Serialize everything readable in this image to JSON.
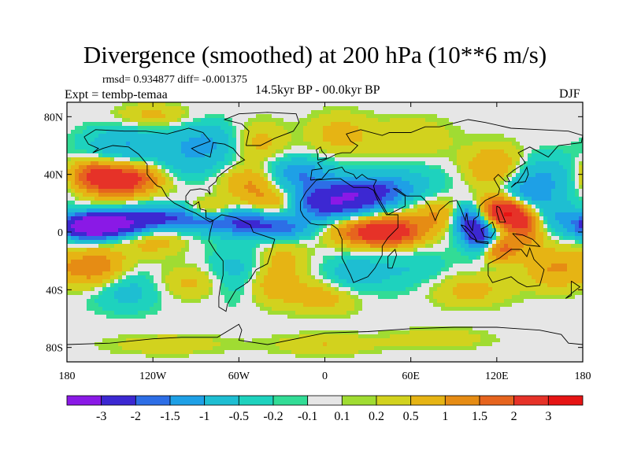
{
  "title": "Divergence (smoothed) at 200 hPa (10**6 m/s)",
  "stats": "rmsd= 0.934877 diff= -0.001375",
  "period": "14.5kyr BP - 00.0kyr BP",
  "experiment": "Expt = tembp-temaa",
  "season": "DJF",
  "chart_data": {
    "type": "heatmap",
    "title": "Divergence (smoothed) at 200 hPa (10**6 m/s)",
    "subtitle": "14.5kyr BP - 00.0kyr BP",
    "units": "10**6 m/s",
    "xlim": [
      -180,
      180
    ],
    "ylim": [
      -90,
      90
    ],
    "x_ticks": [
      {
        "value": -180,
        "label": "180"
      },
      {
        "value": -120,
        "label": "120W"
      },
      {
        "value": -60,
        "label": "60W"
      },
      {
        "value": 0,
        "label": "0"
      },
      {
        "value": 60,
        "label": "60E"
      },
      {
        "value": 120,
        "label": "120E"
      },
      {
        "value": 180,
        "label": "180"
      }
    ],
    "y_ticks": [
      {
        "value": 80,
        "label": "80N"
      },
      {
        "value": 40,
        "label": "40N"
      },
      {
        "value": 0,
        "label": "0"
      },
      {
        "value": -40,
        "label": "40S"
      },
      {
        "value": -80,
        "label": "80S"
      }
    ],
    "colorbar": {
      "levels": [
        "-3",
        "-2",
        "-1.5",
        "-1",
        "-0.5",
        "-0.2",
        "-0.1",
        "0.1",
        "0.2",
        "0.5",
        "1",
        "1.5",
        "2",
        "3"
      ],
      "colors": [
        "#8a19e6",
        "#3c28d2",
        "#2d6ee6",
        "#1ea0e6",
        "#1ebed2",
        "#1ed2be",
        "#32dc96",
        "#e6e6e6",
        "#a0dc32",
        "#d2d21e",
        "#e6b414",
        "#e68c14",
        "#e6641e",
        "#e63228",
        "#e61414"
      ]
    },
    "features": [
      {
        "lon": -150,
        "lat": 5,
        "value": -3.0,
        "wx": 20,
        "wy": 6
      },
      {
        "lon": -165,
        "lat": 3,
        "value": -2.5,
        "wx": 12,
        "wy": 6
      },
      {
        "lon": -110,
        "lat": 10,
        "value": -2.0,
        "wx": 25,
        "wy": 6
      },
      {
        "lon": -60,
        "lat": 8,
        "value": -1.8,
        "wx": 20,
        "wy": 7
      },
      {
        "lon": -30,
        "lat": 2,
        "value": -1.5,
        "wx": 18,
        "wy": 6
      },
      {
        "lon": 0,
        "lat": 20,
        "value": -2.5,
        "wx": 22,
        "wy": 8
      },
      {
        "lon": 30,
        "lat": 28,
        "value": -2.0,
        "wx": 20,
        "wy": 8
      },
      {
        "lon": -20,
        "lat": 40,
        "value": -1.5,
        "wx": 18,
        "wy": 8
      },
      {
        "lon": 100,
        "lat": 8,
        "value": -2.5,
        "wx": 8,
        "wy": 8
      },
      {
        "lon": 110,
        "lat": -5,
        "value": -2.5,
        "wx": 8,
        "wy": 8
      },
      {
        "lon": 140,
        "lat": 25,
        "value": -1.5,
        "wx": 14,
        "wy": 8
      },
      {
        "lon": 150,
        "lat": 40,
        "value": -1.0,
        "wx": 18,
        "wy": 10
      },
      {
        "lon": 160,
        "lat": 10,
        "value": -1.0,
        "wx": 14,
        "wy": 8
      },
      {
        "lon": -80,
        "lat": 62,
        "value": -1.2,
        "wx": 22,
        "wy": 10
      },
      {
        "lon": -140,
        "lat": 60,
        "value": -1.0,
        "wx": 20,
        "wy": 10
      },
      {
        "lon": -60,
        "lat": -30,
        "value": -1.0,
        "wx": 16,
        "wy": 12
      },
      {
        "lon": -140,
        "lat": -40,
        "value": -0.8,
        "wx": 18,
        "wy": 10
      },
      {
        "lon": 20,
        "lat": -30,
        "value": -0.8,
        "wx": 15,
        "wy": 10
      },
      {
        "lon": 60,
        "lat": -25,
        "value": -0.5,
        "wx": 20,
        "wy": 12
      },
      {
        "lon": 60,
        "lat": 35,
        "value": -0.5,
        "wx": 20,
        "wy": 10
      },
      {
        "lon": -100,
        "lat": 45,
        "value": -0.6,
        "wx": 20,
        "wy": 8
      },
      {
        "lon": -150,
        "lat": 35,
        "value": 2.0,
        "wx": 15,
        "wy": 8
      },
      {
        "lon": -130,
        "lat": 38,
        "value": 1.5,
        "wx": 15,
        "wy": 8
      },
      {
        "lon": -165,
        "lat": 42,
        "value": 1.2,
        "wx": 12,
        "wy": 7
      },
      {
        "lon": -35,
        "lat": 20,
        "value": 1.5,
        "wx": 15,
        "wy": 7
      },
      {
        "lon": -50,
        "lat": 35,
        "value": 1.2,
        "wx": 15,
        "wy": 8
      },
      {
        "lon": -80,
        "lat": 15,
        "value": 1.5,
        "wx": 12,
        "wy": 5
      },
      {
        "lon": 30,
        "lat": 0,
        "value": 2.0,
        "wx": 20,
        "wy": 7
      },
      {
        "lon": 50,
        "lat": 0,
        "value": 1.5,
        "wx": 15,
        "wy": 8
      },
      {
        "lon": 125,
        "lat": 15,
        "value": 3.0,
        "wx": 12,
        "wy": 8
      },
      {
        "lon": 120,
        "lat": -12,
        "value": 2.0,
        "wx": 10,
        "wy": 6
      },
      {
        "lon": 140,
        "lat": 5,
        "value": 1.8,
        "wx": 10,
        "wy": 10
      },
      {
        "lon": -160,
        "lat": -25,
        "value": 1.5,
        "wx": 15,
        "wy": 10
      },
      {
        "lon": 160,
        "lat": -25,
        "value": 1.0,
        "wx": 15,
        "wy": 10
      },
      {
        "lon": -50,
        "lat": 62,
        "value": 1.0,
        "wx": 15,
        "wy": 10
      },
      {
        "lon": -120,
        "lat": -5,
        "value": 0.8,
        "wx": 15,
        "wy": 8
      },
      {
        "lon": 80,
        "lat": 12,
        "value": 1.0,
        "wx": 15,
        "wy": 8
      },
      {
        "lon": -40,
        "lat": -35,
        "value": 1.0,
        "wx": 15,
        "wy": 10
      },
      {
        "lon": 0,
        "lat": -45,
        "value": 0.8,
        "wx": 18,
        "wy": 8
      },
      {
        "lon": -30,
        "lat": -15,
        "value": 0.6,
        "wx": 12,
        "wy": 10
      },
      {
        "lon": 120,
        "lat": 45,
        "value": 1.2,
        "wx": 15,
        "wy": 10
      },
      {
        "lon": 100,
        "lat": -40,
        "value": 0.7,
        "wx": 20,
        "wy": 8
      },
      {
        "lon": -90,
        "lat": -35,
        "value": 0.7,
        "wx": 18,
        "wy": 8
      },
      {
        "lon": 10,
        "lat": 68,
        "value": 0.7,
        "wx": 15,
        "wy": 10
      },
      {
        "lon": 60,
        "lat": 65,
        "value": 0.5,
        "wx": 20,
        "wy": 10
      },
      {
        "lon": -120,
        "lat": 80,
        "value": 0.7,
        "wx": 18,
        "wy": 6
      },
      {
        "lon": 0,
        "lat": -78,
        "value": 0.5,
        "wx": 25,
        "wy": 5
      },
      {
        "lon": -110,
        "lat": -78,
        "value": 0.4,
        "wx": 30,
        "wy": 5
      },
      {
        "lon": 80,
        "lat": -74,
        "value": 0.4,
        "wx": 25,
        "wy": 5
      }
    ]
  }
}
